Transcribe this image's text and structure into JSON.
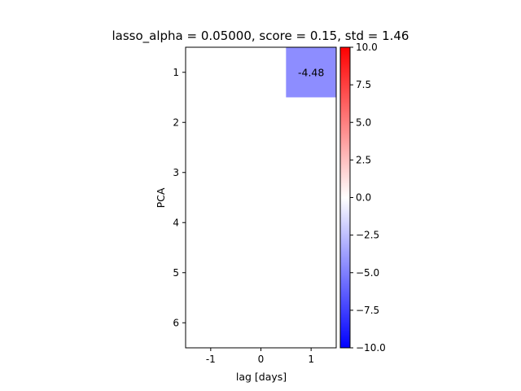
{
  "chart_data": {
    "type": "heatmap",
    "title": "lasso_alpha = 0.05000, score = 0.15, std = 1.46",
    "xlabel": "lag [days]",
    "ylabel": "PCA",
    "x_categories": [
      "-1",
      "0",
      "1"
    ],
    "y_categories": [
      "1",
      "2",
      "3",
      "4",
      "5",
      "6"
    ],
    "values": [
      [
        0,
        0,
        -4.48
      ],
      [
        0,
        0,
        0
      ],
      [
        0,
        0,
        0
      ],
      [
        0,
        0,
        0
      ],
      [
        0,
        0,
        0
      ],
      [
        0,
        0,
        0
      ]
    ],
    "annotations": [
      {
        "row": 0,
        "col": 2,
        "text": "-4.48"
      }
    ],
    "colormap": "bwr",
    "vmin": -10.0,
    "vmax": 10.0,
    "colorbar_ticks": [
      "10.0",
      "7.5",
      "5.0",
      "2.5",
      "0.0",
      "−2.5",
      "−5.0",
      "−7.5",
      "−10.0"
    ],
    "colorbar_tick_values": [
      10.0,
      7.5,
      5.0,
      2.5,
      0.0,
      -2.5,
      -5.0,
      -7.5,
      -10.0
    ],
    "grid": false,
    "legend": "none"
  }
}
